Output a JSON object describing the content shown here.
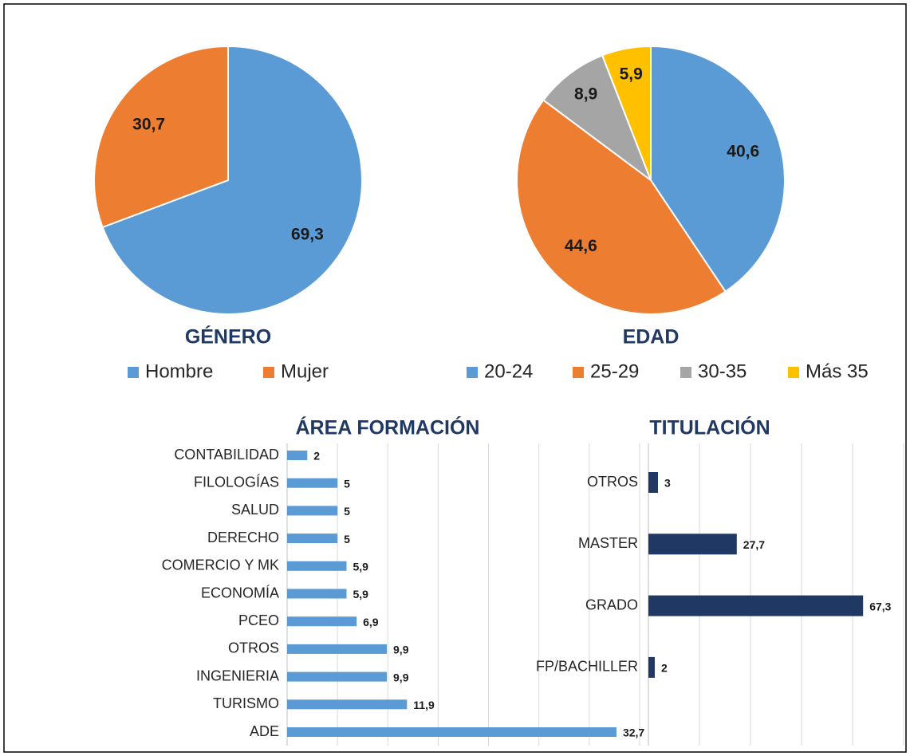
{
  "chart_data": [
    {
      "type": "pie",
      "title": "GÉNERO",
      "categories": [
        "Hombre",
        "Mujer"
      ],
      "values": [
        69.3,
        30.7
      ],
      "value_labels": [
        "69,3",
        "30,7"
      ],
      "colors": [
        "#5b9bd5",
        "#ed7d31"
      ]
    },
    {
      "type": "pie",
      "title": "EDAD",
      "categories": [
        "20-24",
        "25-29",
        "30-35",
        "Más 35"
      ],
      "values": [
        40.6,
        44.6,
        8.9,
        5.9
      ],
      "value_labels": [
        "40,6",
        "44,6",
        "8,9",
        "5,9"
      ],
      "colors": [
        "#5b9bd5",
        "#ed7d31",
        "#a5a5a5",
        "#ffc000"
      ]
    },
    {
      "type": "hbar",
      "title": "ÁREA FORMACIÓN",
      "categories": [
        "CONTABILIDAD",
        "FILOLOGÍAS",
        "SALUD",
        "DERECHO",
        "COMERCIO Y MK",
        "ECONOMÍA",
        "PCEO",
        "OTROS",
        "INGENIERIA",
        "TURISMO",
        "ADE"
      ],
      "values": [
        2,
        5,
        5,
        5,
        5.9,
        5.9,
        6.9,
        9.9,
        9.9,
        11.9,
        32.7
      ],
      "value_labels": [
        "2",
        "5",
        "5",
        "5",
        "5,9",
        "5,9",
        "6,9",
        "9,9",
        "9,9",
        "11,9",
        "32,7"
      ],
      "color": "#5b9bd5",
      "xlim": [
        0,
        35
      ],
      "xticks": [
        0,
        5,
        10,
        15,
        20,
        25,
        30,
        35
      ],
      "grid": true
    },
    {
      "type": "hbar",
      "title": "TITULACIÓN",
      "categories": [
        "OTROS",
        "MASTER",
        "GRADO",
        "FP/BACHILLER"
      ],
      "values": [
        3,
        27.7,
        67.3,
        2
      ],
      "value_labels": [
        "3",
        "27,7",
        "67,3",
        "2"
      ],
      "color": "#203864",
      "xlim": [
        0,
        80
      ],
      "xticks": [
        0,
        16,
        32,
        48,
        64,
        80
      ],
      "grid": true
    }
  ]
}
